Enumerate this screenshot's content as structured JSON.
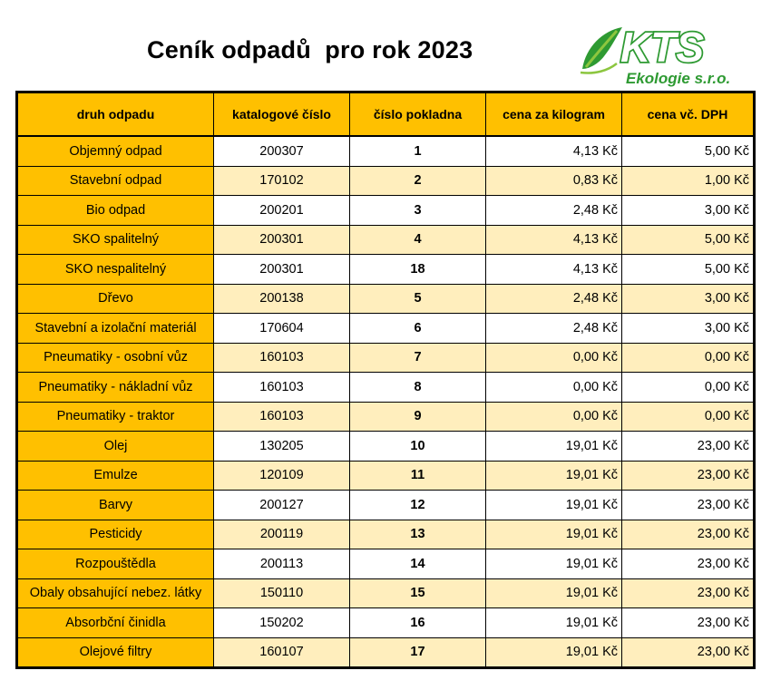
{
  "title": "Ceník odpadů  pro rok 2023",
  "logo": {
    "brand": "KTS",
    "subtitle": "Ekologie s.r.o.",
    "colors": {
      "green": "#2e9a32",
      "light_green": "#8cc63f"
    }
  },
  "colors": {
    "header_fill": "#ffc000",
    "stripe_fill": "#ffeebd"
  },
  "table": {
    "headers": [
      "druh odpadu",
      "katalogové číslo",
      "číslo pokladna",
      "cena za kilogram",
      "cena vč. DPH"
    ],
    "rows": [
      {
        "name": "Objemný odpad",
        "catalog": "200307",
        "register": "1",
        "price_kg": "4,13 Kč",
        "price_vat": "5,00 Kč"
      },
      {
        "name": "Stavební odpad",
        "catalog": "170102",
        "register": "2",
        "price_kg": "0,83 Kč",
        "price_vat": "1,00 Kč"
      },
      {
        "name": "Bio odpad",
        "catalog": "200201",
        "register": "3",
        "price_kg": "2,48 Kč",
        "price_vat": "3,00 Kč"
      },
      {
        "name": "SKO spalitelný",
        "catalog": "200301",
        "register": "4",
        "price_kg": "4,13 Kč",
        "price_vat": "5,00 Kč"
      },
      {
        "name": "SKO nespalitelný",
        "catalog": "200301",
        "register": "18",
        "price_kg": "4,13 Kč",
        "price_vat": "5,00 Kč"
      },
      {
        "name": "Dřevo",
        "catalog": "200138",
        "register": "5",
        "price_kg": "2,48 Kč",
        "price_vat": "3,00 Kč"
      },
      {
        "name": "Stavební a izolační materiál",
        "catalog": "170604",
        "register": "6",
        "price_kg": "2,48 Kč",
        "price_vat": "3,00 Kč"
      },
      {
        "name": "Pneumatiky - osobní vůz",
        "catalog": "160103",
        "register": "7",
        "price_kg": "0,00 Kč",
        "price_vat": "0,00 Kč"
      },
      {
        "name": "Pneumatiky - nákladní vůz",
        "catalog": "160103",
        "register": "8",
        "price_kg": "0,00 Kč",
        "price_vat": "0,00 Kč"
      },
      {
        "name": "Pneumatiky - traktor",
        "catalog": "160103",
        "register": "9",
        "price_kg": "0,00 Kč",
        "price_vat": "0,00 Kč"
      },
      {
        "name": "Olej",
        "catalog": "130205",
        "register": "10",
        "price_kg": "19,01 Kč",
        "price_vat": "23,00 Kč"
      },
      {
        "name": "Emulze",
        "catalog": "120109",
        "register": "11",
        "price_kg": "19,01 Kč",
        "price_vat": "23,00 Kč"
      },
      {
        "name": "Barvy",
        "catalog": "200127",
        "register": "12",
        "price_kg": "19,01 Kč",
        "price_vat": "23,00 Kč"
      },
      {
        "name": "Pesticidy",
        "catalog": "200119",
        "register": "13",
        "price_kg": "19,01 Kč",
        "price_vat": "23,00 Kč"
      },
      {
        "name": "Rozpouštědla",
        "catalog": "200113",
        "register": "14",
        "price_kg": "19,01 Kč",
        "price_vat": "23,00 Kč"
      },
      {
        "name": "Obaly obsahující nebez. látky",
        "catalog": "150110",
        "register": "15",
        "price_kg": "19,01 Kč",
        "price_vat": "23,00 Kč"
      },
      {
        "name": "Absorbční činidla",
        "catalog": "150202",
        "register": "16",
        "price_kg": "19,01 Kč",
        "price_vat": "23,00 Kč"
      },
      {
        "name": "Olejové filtry",
        "catalog": "160107",
        "register": "17",
        "price_kg": "19,01 Kč",
        "price_vat": "23,00 Kč"
      }
    ]
  }
}
